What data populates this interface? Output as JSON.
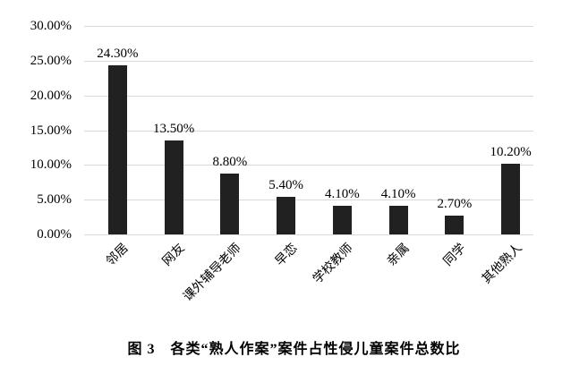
{
  "figure": {
    "caption": "图 3　各类“熟人作案”案件占性侵儿童案件总数比"
  },
  "chart_data": {
    "type": "bar",
    "title": "",
    "xlabel": "",
    "ylabel": "",
    "categories": [
      "邻居",
      "网友",
      "课外辅导老师",
      "早恋",
      "学校教师",
      "亲属",
      "同学",
      "其他熟人"
    ],
    "values": [
      24.3,
      13.5,
      8.8,
      5.4,
      4.1,
      4.1,
      2.7,
      10.2
    ],
    "data_labels": [
      "24.30%",
      "13.50%",
      "8.80%",
      "5.40%",
      "4.10%",
      "4.10%",
      "2.70%",
      "10.20%"
    ],
    "y_ticks": [
      0,
      5,
      10,
      15,
      20,
      25,
      30
    ],
    "y_tick_labels": [
      "0.00%",
      "5.00%",
      "10.00%",
      "15.00%",
      "20.00%",
      "25.00%",
      "30.00%"
    ],
    "ylim": [
      0,
      30
    ],
    "grid": true,
    "legend_position": "none",
    "bar_color": "#212121",
    "gridline_color": "#d9d9d9",
    "text_color": "#000000",
    "background_color": "#ffffff",
    "x_label_rotation_deg": -45
  }
}
